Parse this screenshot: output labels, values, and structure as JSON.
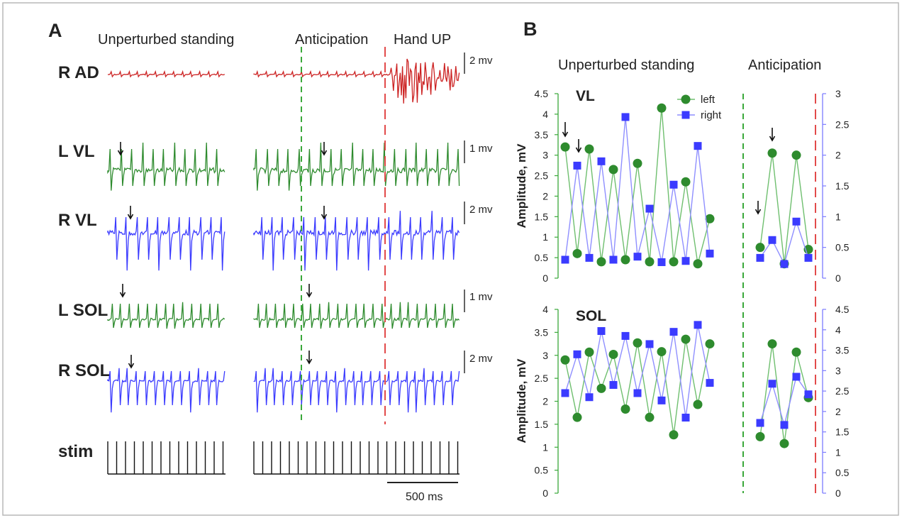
{
  "panel_a": {
    "letter": "A",
    "header_unperturbed": "Unperturbed standing",
    "header_anticipation": "Anticipation",
    "header_handup": "Hand UP",
    "traces": [
      {
        "key": "rad",
        "label": "R AD",
        "color": "#cc2222",
        "scale_label": "2 mv"
      },
      {
        "key": "lvl",
        "label": "L VL",
        "color": "#2e8b2e",
        "scale_label": "1 mv"
      },
      {
        "key": "rvl",
        "label": "R VL",
        "color": "#3b3bff",
        "scale_label": "2 mv"
      },
      {
        "key": "lsol",
        "label": "L SOL",
        "color": "#2e8b2e",
        "scale_label": "1 mv"
      },
      {
        "key": "rsol",
        "label": "R SOL",
        "color": "#3b3bff",
        "scale_label": "2 mv"
      },
      {
        "key": "stim",
        "label": "stim",
        "color": "#111111",
        "scale_label": ""
      }
    ],
    "time_scale_label": "500 ms"
  },
  "panel_b": {
    "letter": "B",
    "header_unperturbed": "Unperturbed standing",
    "header_anticipation": "Anticipation"
  },
  "chart_data": [
    {
      "type": "line",
      "title": "VL",
      "ylabel": "Amplitude, mV",
      "left_axis": {
        "ylim": [
          0,
          4.5
        ],
        "ticks": [
          "0",
          "0.5",
          "1",
          "1.5",
          "2",
          "2.5",
          "3",
          "3.5",
          "4",
          "4.5"
        ]
      },
      "right_axis": {
        "ylim": [
          0,
          3
        ],
        "ticks": [
          "0",
          "0.5",
          "1",
          "1.5",
          "2",
          "2.5",
          "3"
        ]
      },
      "legend": "top-center",
      "series": [
        {
          "name": "left",
          "color": "#2e8b2e",
          "marker": "circle",
          "axis": "left",
          "unperturbed": [
            3.2,
            0.6,
            3.15,
            0.4,
            2.65,
            0.45,
            2.8,
            0.4,
            4.15,
            0.4,
            2.35,
            0.35,
            1.45
          ],
          "anticipation": [
            0.75,
            3.05,
            0.35,
            3.0,
            0.7
          ]
        },
        {
          "name": "right",
          "color": "#3b3bff",
          "marker": "square",
          "axis": "right",
          "unperturbed": [
            0.3,
            1.83,
            0.33,
            1.9,
            0.3,
            2.62,
            0.35,
            1.13,
            0.26,
            1.52,
            0.28,
            2.15,
            0.4
          ],
          "anticipation": [
            0.33,
            0.62,
            0.23,
            0.92,
            0.33
          ]
        }
      ]
    },
    {
      "type": "line",
      "title": "SOL",
      "ylabel": "Amplitude, mV",
      "left_axis": {
        "ylim": [
          0,
          4
        ],
        "ticks": [
          "0",
          "0.5",
          "1",
          "1.5",
          "2",
          "2.5",
          "3",
          "3.5",
          "4"
        ]
      },
      "right_axis": {
        "ylim": [
          0,
          4.5
        ],
        "ticks": [
          "0",
          "0.5",
          "1",
          "1.5",
          "2",
          "2.5",
          "3",
          "3.5",
          "4",
          "4.5"
        ]
      },
      "series": [
        {
          "name": "left",
          "color": "#2e8b2e",
          "marker": "circle",
          "axis": "left",
          "unperturbed": [
            2.9,
            1.65,
            3.07,
            2.28,
            3.02,
            1.83,
            3.27,
            1.65,
            3.08,
            1.27,
            3.35,
            1.93,
            3.25
          ],
          "anticipation": [
            1.23,
            3.25,
            1.08,
            3.07,
            2.08
          ]
        },
        {
          "name": "right",
          "color": "#3b3bff",
          "marker": "square",
          "axis": "right",
          "unperturbed": [
            2.45,
            3.4,
            2.35,
            3.97,
            2.65,
            3.85,
            2.45,
            3.65,
            2.27,
            3.95,
            1.85,
            4.12,
            2.7
          ],
          "anticipation": [
            1.72,
            2.68,
            1.67,
            2.85,
            2.42
          ]
        }
      ]
    }
  ]
}
